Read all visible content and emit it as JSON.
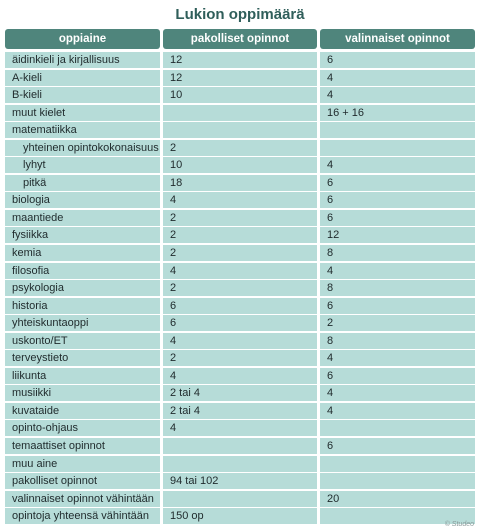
{
  "title": "Lukion oppimäärä",
  "headers": [
    "oppiaine",
    "pakolliset opinnot",
    "valinnaiset opinnot"
  ],
  "rows": [
    {
      "subject": "äidinkieli ja kirjallisuus",
      "required": "12",
      "optional": "6",
      "indent": false
    },
    {
      "subject": "A-kieli",
      "required": "12",
      "optional": "4",
      "indent": false
    },
    {
      "subject": "B-kieli",
      "required": "10",
      "optional": "4",
      "indent": false
    },
    {
      "subject": "muut kielet",
      "required": "",
      "optional": "16 + 16",
      "indent": false
    },
    {
      "subject": "matematiikka",
      "required": "",
      "optional": "",
      "indent": false
    },
    {
      "subject": "yhteinen opintokokonaisuus",
      "required": "2",
      "optional": "",
      "indent": true
    },
    {
      "subject": "lyhyt",
      "required": "10",
      "optional": "4",
      "indent": true
    },
    {
      "subject": "pitkä",
      "required": "18",
      "optional": "6",
      "indent": true
    },
    {
      "subject": "biologia",
      "required": "4",
      "optional": "6",
      "indent": false
    },
    {
      "subject": "maantiede",
      "required": "2",
      "optional": "6",
      "indent": false
    },
    {
      "subject": "fysiikka",
      "required": "2",
      "optional": "12",
      "indent": false
    },
    {
      "subject": "kemia",
      "required": "2",
      "optional": "8",
      "indent": false
    },
    {
      "subject": "filosofia",
      "required": "4",
      "optional": "4",
      "indent": false
    },
    {
      "subject": "psykologia",
      "required": "2",
      "optional": "8",
      "indent": false
    },
    {
      "subject": "historia",
      "required": "6",
      "optional": "6",
      "indent": false
    },
    {
      "subject": "yhteiskuntaoppi",
      "required": "6",
      "optional": "2",
      "indent": false
    },
    {
      "subject": "uskonto/ET",
      "required": "4",
      "optional": "8",
      "indent": false
    },
    {
      "subject": "terveystieto",
      "required": "2",
      "optional": "4",
      "indent": false
    },
    {
      "subject": "liikunta",
      "required": "4",
      "optional": "6",
      "indent": false
    },
    {
      "subject": "musiikki",
      "required": "2 tai 4",
      "optional": "4",
      "indent": false
    },
    {
      "subject": "kuvataide",
      "required": "2 tai 4",
      "optional": "4",
      "indent": false
    },
    {
      "subject": "opinto-ohjaus",
      "required": "4",
      "optional": "",
      "indent": false
    },
    {
      "subject": "temaattiset opinnot",
      "required": "",
      "optional": "6",
      "indent": false
    },
    {
      "subject": "muu aine",
      "required": "",
      "optional": "",
      "indent": false
    },
    {
      "subject": "pakolliset opinnot",
      "required": "94 tai 102",
      "optional": "",
      "indent": false
    },
    {
      "subject": "valinnaiset opinnot vähintään",
      "required": "",
      "optional": "20",
      "indent": false
    },
    {
      "subject": "opintoja yhteensä vähintään",
      "required": "150 op",
      "optional": "",
      "indent": false
    }
  ],
  "credit": "© Studeo",
  "colors": {
    "header": "#4f857c",
    "row": "#b6dcd8",
    "title": "#2f5e5a"
  }
}
